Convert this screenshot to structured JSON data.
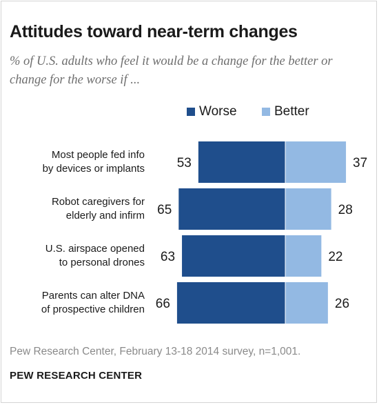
{
  "colors": {
    "worse": "#1f4e8c",
    "better": "#93b9e3"
  },
  "chart_data": {
    "type": "bar",
    "title": "Attitudes toward near-term changes",
    "subtitle": "% of U.S. adults who feel it would be a change for the better or change for the worse if ...",
    "categories": [
      [
        "Most people fed info",
        "by devices or implants"
      ],
      [
        "Robot caregivers for",
        "elderly and infirm"
      ],
      [
        "U.S. airspace opened",
        "to personal drones"
      ],
      [
        "Parents can alter DNA",
        "of prospective children"
      ]
    ],
    "series": [
      {
        "name": "Worse",
        "values": [
          53,
          65,
          63,
          66
        ]
      },
      {
        "name": "Better",
        "values": [
          37,
          28,
          22,
          26
        ]
      }
    ],
    "legend": "top"
  },
  "source": "Pew Research Center, February 13-18 2014 survey, n=1,001.",
  "brand": "PEW RESEARCH CENTER"
}
